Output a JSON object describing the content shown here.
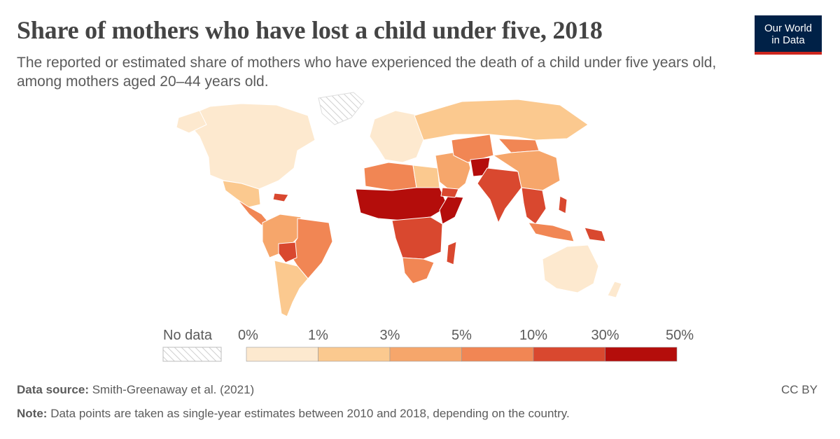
{
  "header": {
    "title": "Share of mothers who have lost a child under five, 2018",
    "subtitle": "The reported or estimated share of mothers who have experienced the death of a child under five years old, among mothers aged 20–44 years old."
  },
  "logo": {
    "line1": "Our World",
    "line2": "in Data"
  },
  "legend": {
    "no_data_label": "No data",
    "tick_labels": [
      "0%",
      "1%",
      "3%",
      "5%",
      "10%",
      "30%",
      "50%"
    ],
    "colors": [
      "#fde9cf",
      "#fbc98f",
      "#f6a66b",
      "#f18654",
      "#d9482f",
      "#b40d0b"
    ]
  },
  "footer": {
    "source_label": "Data source:",
    "source_text": "Smith-Greenaway et al. (2021)",
    "note_label": "Note:",
    "note_text": "Data points are taken as single-year estimates between 2010 and 2018, depending on the country.",
    "license": "CC BY"
  },
  "chart_data": {
    "type": "map",
    "year": 2018,
    "bins": [
      "0–1%",
      "1–3%",
      "3–5%",
      "5–10%",
      "10–30%",
      "30–50%"
    ],
    "regions": [
      {
        "name": "North America",
        "bin": "0–1%"
      },
      {
        "name": "Mexico",
        "bin": "1–3%"
      },
      {
        "name": "Central America",
        "bin": "5–10%"
      },
      {
        "name": "Haiti",
        "bin": "10–30%"
      },
      {
        "name": "South America north",
        "bin": "3–5%"
      },
      {
        "name": "Brazil",
        "bin": "5–10%"
      },
      {
        "name": "Bolivia",
        "bin": "10–30%"
      },
      {
        "name": "Southern Cone",
        "bin": "1–3%"
      },
      {
        "name": "Europe",
        "bin": "0–1%"
      },
      {
        "name": "Russia",
        "bin": "1–3%"
      },
      {
        "name": "North Africa",
        "bin": "5–10%"
      },
      {
        "name": "Egypt",
        "bin": "1–3%"
      },
      {
        "name": "Sahel / West Africa",
        "bin": "30–50%"
      },
      {
        "name": "Somalia",
        "bin": "30–50%"
      },
      {
        "name": "East & Central Africa",
        "bin": "10–30%"
      },
      {
        "name": "Southern Africa",
        "bin": "5–10%"
      },
      {
        "name": "Madagascar",
        "bin": "10–30%"
      },
      {
        "name": "Middle East",
        "bin": "3–5%"
      },
      {
        "name": "Yemen",
        "bin": "10–30%"
      },
      {
        "name": "Central Asia",
        "bin": "5–10%"
      },
      {
        "name": "Afghanistan",
        "bin": "30–50%"
      },
      {
        "name": "South Asia",
        "bin": "10–30%"
      },
      {
        "name": "China",
        "bin": "3–5%"
      },
      {
        "name": "Mongolia",
        "bin": "5–10%"
      },
      {
        "name": "Southeast Asia",
        "bin": "10–30%"
      },
      {
        "name": "Indonesia",
        "bin": "5–10%"
      },
      {
        "name": "Papua New Guinea",
        "bin": "10–30%"
      },
      {
        "name": "Australia",
        "bin": "0–1%"
      },
      {
        "name": "Greenland",
        "bin": "No data"
      }
    ]
  }
}
